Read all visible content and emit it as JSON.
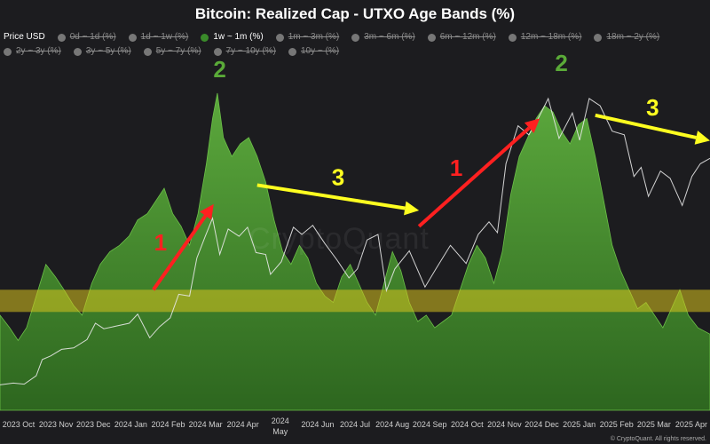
{
  "chart_data": {
    "type": "area",
    "title": "Bitcoin: Realized Cap - UTXO Age Bands (%)",
    "legend": [
      {
        "name": "Price USD",
        "state": "plain",
        "color": ""
      },
      {
        "name": "0d ~ 1d (%)",
        "state": "off",
        "color": "#777777"
      },
      {
        "name": "1d ~ 1w (%)",
        "state": "off",
        "color": "#777777"
      },
      {
        "name": "1w ~ 1m (%)",
        "state": "on",
        "color": "#3a8a2a"
      },
      {
        "name": "1m ~ 3m (%)",
        "state": "off",
        "color": "#777777"
      },
      {
        "name": "3m ~ 6m (%)",
        "state": "off",
        "color": "#777777"
      },
      {
        "name": "6m ~ 12m (%)",
        "state": "off",
        "color": "#777777"
      },
      {
        "name": "12m ~ 18m (%)",
        "state": "off",
        "color": "#777777"
      },
      {
        "name": "18m ~ 2y (%)",
        "state": "off",
        "color": "#777777"
      },
      {
        "name": "2y ~ 3y (%)",
        "state": "off",
        "color": "#777777"
      },
      {
        "name": "3y ~ 5y (%)",
        "state": "off",
        "color": "#777777"
      },
      {
        "name": "5y ~ 7y (%)",
        "state": "off",
        "color": "#777777"
      },
      {
        "name": "7y ~ 10y (%)",
        "state": "off",
        "color": "#777777"
      },
      {
        "name": "10y ~ (%)",
        "state": "off",
        "color": "#777777"
      }
    ],
    "x_ticks": [
      "2023 Oct",
      "2023 Nov",
      "2023 Dec",
      "2024 Jan",
      "2024 Feb",
      "2024 Mar",
      "2024 Apr",
      "2024 May",
      "2024 Jun",
      "2024 Jul",
      "2024 Aug",
      "2024 Sep",
      "2024 Oct",
      "2024 Nov",
      "2024 Dec",
      "2025 Jan",
      "2025 Feb",
      "2025 Mar",
      "2025 Apr"
    ],
    "x_domain": [
      "2023-09-20",
      "2025-04-30"
    ],
    "series": [
      {
        "name": "1w ~ 1m (%)",
        "color": "#4f9a35",
        "points": [
          [
            "2023-09-20",
            0.3
          ],
          [
            "2023-09-28",
            0.26
          ],
          [
            "2023-10-05",
            0.22
          ],
          [
            "2023-10-12",
            0.26
          ],
          [
            "2023-10-20",
            0.36
          ],
          [
            "2023-10-28",
            0.46
          ],
          [
            "2023-11-05",
            0.42
          ],
          [
            "2023-11-12",
            0.38
          ],
          [
            "2023-11-20",
            0.33
          ],
          [
            "2023-11-27",
            0.3
          ],
          [
            "2023-12-05",
            0.4
          ],
          [
            "2023-12-12",
            0.46
          ],
          [
            "2023-12-20",
            0.5
          ],
          [
            "2023-12-28",
            0.52
          ],
          [
            "2024-01-05",
            0.55
          ],
          [
            "2024-01-12",
            0.6
          ],
          [
            "2024-01-20",
            0.62
          ],
          [
            "2024-01-27",
            0.66
          ],
          [
            "2024-02-03",
            0.7
          ],
          [
            "2024-02-10",
            0.62
          ],
          [
            "2024-02-17",
            0.58
          ],
          [
            "2024-02-24",
            0.52
          ],
          [
            "2024-03-02",
            0.62
          ],
          [
            "2024-03-09",
            0.78
          ],
          [
            "2024-03-14",
            0.92
          ],
          [
            "2024-03-18",
            1.0
          ],
          [
            "2024-03-23",
            0.86
          ],
          [
            "2024-03-30",
            0.8
          ],
          [
            "2024-04-06",
            0.84
          ],
          [
            "2024-04-13",
            0.86
          ],
          [
            "2024-04-20",
            0.8
          ],
          [
            "2024-04-27",
            0.72
          ],
          [
            "2024-05-04",
            0.6
          ],
          [
            "2024-05-11",
            0.5
          ],
          [
            "2024-05-18",
            0.46
          ],
          [
            "2024-05-25",
            0.52
          ],
          [
            "2024-06-01",
            0.48
          ],
          [
            "2024-06-08",
            0.4
          ],
          [
            "2024-06-15",
            0.36
          ],
          [
            "2024-06-22",
            0.34
          ],
          [
            "2024-06-29",
            0.42
          ],
          [
            "2024-07-06",
            0.46
          ],
          [
            "2024-07-13",
            0.4
          ],
          [
            "2024-07-20",
            0.34
          ],
          [
            "2024-07-27",
            0.3
          ],
          [
            "2024-08-03",
            0.4
          ],
          [
            "2024-08-10",
            0.5
          ],
          [
            "2024-08-17",
            0.44
          ],
          [
            "2024-08-24",
            0.34
          ],
          [
            "2024-08-31",
            0.28
          ],
          [
            "2024-09-07",
            0.3
          ],
          [
            "2024-09-14",
            0.26
          ],
          [
            "2024-09-21",
            0.28
          ],
          [
            "2024-09-28",
            0.3
          ],
          [
            "2024-10-05",
            0.38
          ],
          [
            "2024-10-12",
            0.46
          ],
          [
            "2024-10-19",
            0.52
          ],
          [
            "2024-10-26",
            0.48
          ],
          [
            "2024-11-02",
            0.4
          ],
          [
            "2024-11-09",
            0.5
          ],
          [
            "2024-11-16",
            0.68
          ],
          [
            "2024-11-23",
            0.8
          ],
          [
            "2024-11-30",
            0.86
          ],
          [
            "2024-12-07",
            0.92
          ],
          [
            "2024-12-14",
            0.96
          ],
          [
            "2024-12-21",
            0.94
          ],
          [
            "2024-12-28",
            0.88
          ],
          [
            "2025-01-04",
            0.84
          ],
          [
            "2025-01-11",
            0.9
          ],
          [
            "2025-01-18",
            0.92
          ],
          [
            "2025-01-25",
            0.8
          ],
          [
            "2025-02-01",
            0.66
          ],
          [
            "2025-02-08",
            0.52
          ],
          [
            "2025-02-15",
            0.44
          ],
          [
            "2025-02-22",
            0.38
          ],
          [
            "2025-03-01",
            0.32
          ],
          [
            "2025-03-08",
            0.34
          ],
          [
            "2025-03-15",
            0.3
          ],
          [
            "2025-03-22",
            0.26
          ],
          [
            "2025-03-29",
            0.32
          ],
          [
            "2025-04-05",
            0.38
          ],
          [
            "2025-04-12",
            0.3
          ],
          [
            "2025-04-20",
            0.26
          ],
          [
            "2025-04-30",
            0.24
          ]
        ]
      },
      {
        "name": "Price USD",
        "color": "#e8e8e8",
        "points": [
          [
            "2023-09-20",
            27000
          ],
          [
            "2023-10-01",
            27500
          ],
          [
            "2023-10-10",
            27200
          ],
          [
            "2023-10-20",
            29500
          ],
          [
            "2023-10-25",
            34000
          ],
          [
            "2023-11-01",
            35000
          ],
          [
            "2023-11-10",
            36800
          ],
          [
            "2023-11-20",
            37200
          ],
          [
            "2023-12-01",
            39500
          ],
          [
            "2023-12-08",
            44000
          ],
          [
            "2023-12-15",
            42500
          ],
          [
            "2023-12-25",
            43200
          ],
          [
            "2024-01-05",
            44000
          ],
          [
            "2024-01-12",
            46500
          ],
          [
            "2024-01-22",
            40000
          ],
          [
            "2024-01-30",
            43000
          ],
          [
            "2024-02-08",
            45500
          ],
          [
            "2024-02-15",
            52000
          ],
          [
            "2024-02-24",
            51500
          ],
          [
            "2024-03-01",
            62000
          ],
          [
            "2024-03-08",
            68000
          ],
          [
            "2024-03-14",
            73000
          ],
          [
            "2024-03-20",
            63000
          ],
          [
            "2024-03-27",
            70000
          ],
          [
            "2024-04-05",
            68000
          ],
          [
            "2024-04-12",
            70500
          ],
          [
            "2024-04-19",
            63500
          ],
          [
            "2024-04-27",
            63000
          ],
          [
            "2024-05-01",
            57500
          ],
          [
            "2024-05-10",
            61000
          ],
          [
            "2024-05-20",
            70500
          ],
          [
            "2024-05-27",
            68500
          ],
          [
            "2024-06-05",
            71000
          ],
          [
            "2024-06-15",
            66000
          ],
          [
            "2024-06-25",
            61500
          ],
          [
            "2024-07-05",
            56500
          ],
          [
            "2024-07-12",
            59000
          ],
          [
            "2024-07-20",
            67000
          ],
          [
            "2024-07-29",
            68500
          ],
          [
            "2024-08-05",
            53000
          ],
          [
            "2024-08-12",
            59000
          ],
          [
            "2024-08-24",
            64000
          ],
          [
            "2024-09-06",
            54000
          ],
          [
            "2024-09-15",
            59000
          ],
          [
            "2024-09-27",
            65500
          ],
          [
            "2024-10-10",
            60500
          ],
          [
            "2024-10-20",
            68500
          ],
          [
            "2024-10-29",
            72000
          ],
          [
            "2024-11-05",
            69000
          ],
          [
            "2024-11-12",
            88000
          ],
          [
            "2024-11-22",
            98500
          ],
          [
            "2024-12-01",
            96000
          ],
          [
            "2024-12-08",
            100000
          ],
          [
            "2024-12-17",
            106000
          ],
          [
            "2024-12-26",
            95000
          ],
          [
            "2025-01-06",
            102000
          ],
          [
            "2025-01-12",
            94500
          ],
          [
            "2025-01-20",
            106000
          ],
          [
            "2025-01-29",
            104000
          ],
          [
            "2025-02-08",
            97000
          ],
          [
            "2025-02-18",
            96000
          ],
          [
            "2025-02-26",
            84500
          ],
          [
            "2025-03-04",
            87000
          ],
          [
            "2025-03-10",
            79000
          ],
          [
            "2025-03-20",
            86000
          ],
          [
            "2025-03-28",
            84000
          ],
          [
            "2025-04-07",
            76500
          ],
          [
            "2025-04-15",
            84500
          ],
          [
            "2025-04-22",
            88000
          ],
          [
            "2025-04-30",
            89500
          ]
        ]
      }
    ],
    "highlight_band": {
      "color": "#d9c21e",
      "y_range": [
        0.31,
        0.38
      ]
    },
    "annotations": [
      {
        "type": "arrow",
        "color": "#ff2020",
        "label": "1",
        "label_color": "#ff2020",
        "from": [
          "2024-01-25",
          0.38
        ],
        "to": [
          "2024-03-15",
          0.65
        ]
      },
      {
        "type": "label",
        "label": "2",
        "label_color": "#5aaa38",
        "at": [
          "2024-03-20",
          1.05
        ]
      },
      {
        "type": "arrow",
        "color": "#ffff20",
        "label": "3",
        "label_color": "#ffff20",
        "from": [
          "2024-04-20",
          0.71
        ],
        "to": [
          "2024-09-01",
          0.63
        ]
      },
      {
        "type": "arrow",
        "color": "#ff2020",
        "label": "1",
        "label_color": "#ff2020",
        "from": [
          "2024-09-01",
          0.58
        ],
        "to": [
          "2024-12-10",
          0.92
        ]
      },
      {
        "type": "label",
        "label": "2",
        "label_color": "#5aaa38",
        "at": [
          "2024-12-28",
          1.07
        ]
      },
      {
        "type": "arrow",
        "color": "#ffff20",
        "label": "3",
        "label_color": "#ffff20",
        "from": [
          "2025-01-25",
          0.93
        ],
        "to": [
          "2025-04-30",
          0.85
        ]
      }
    ],
    "y_left_range": [
      0,
      1.12
    ],
    "y_right_range": [
      20000,
      118000
    ],
    "grid": false
  },
  "watermark": "CryptoQuant",
  "credit": "© CryptoQuant. All rights reserved."
}
